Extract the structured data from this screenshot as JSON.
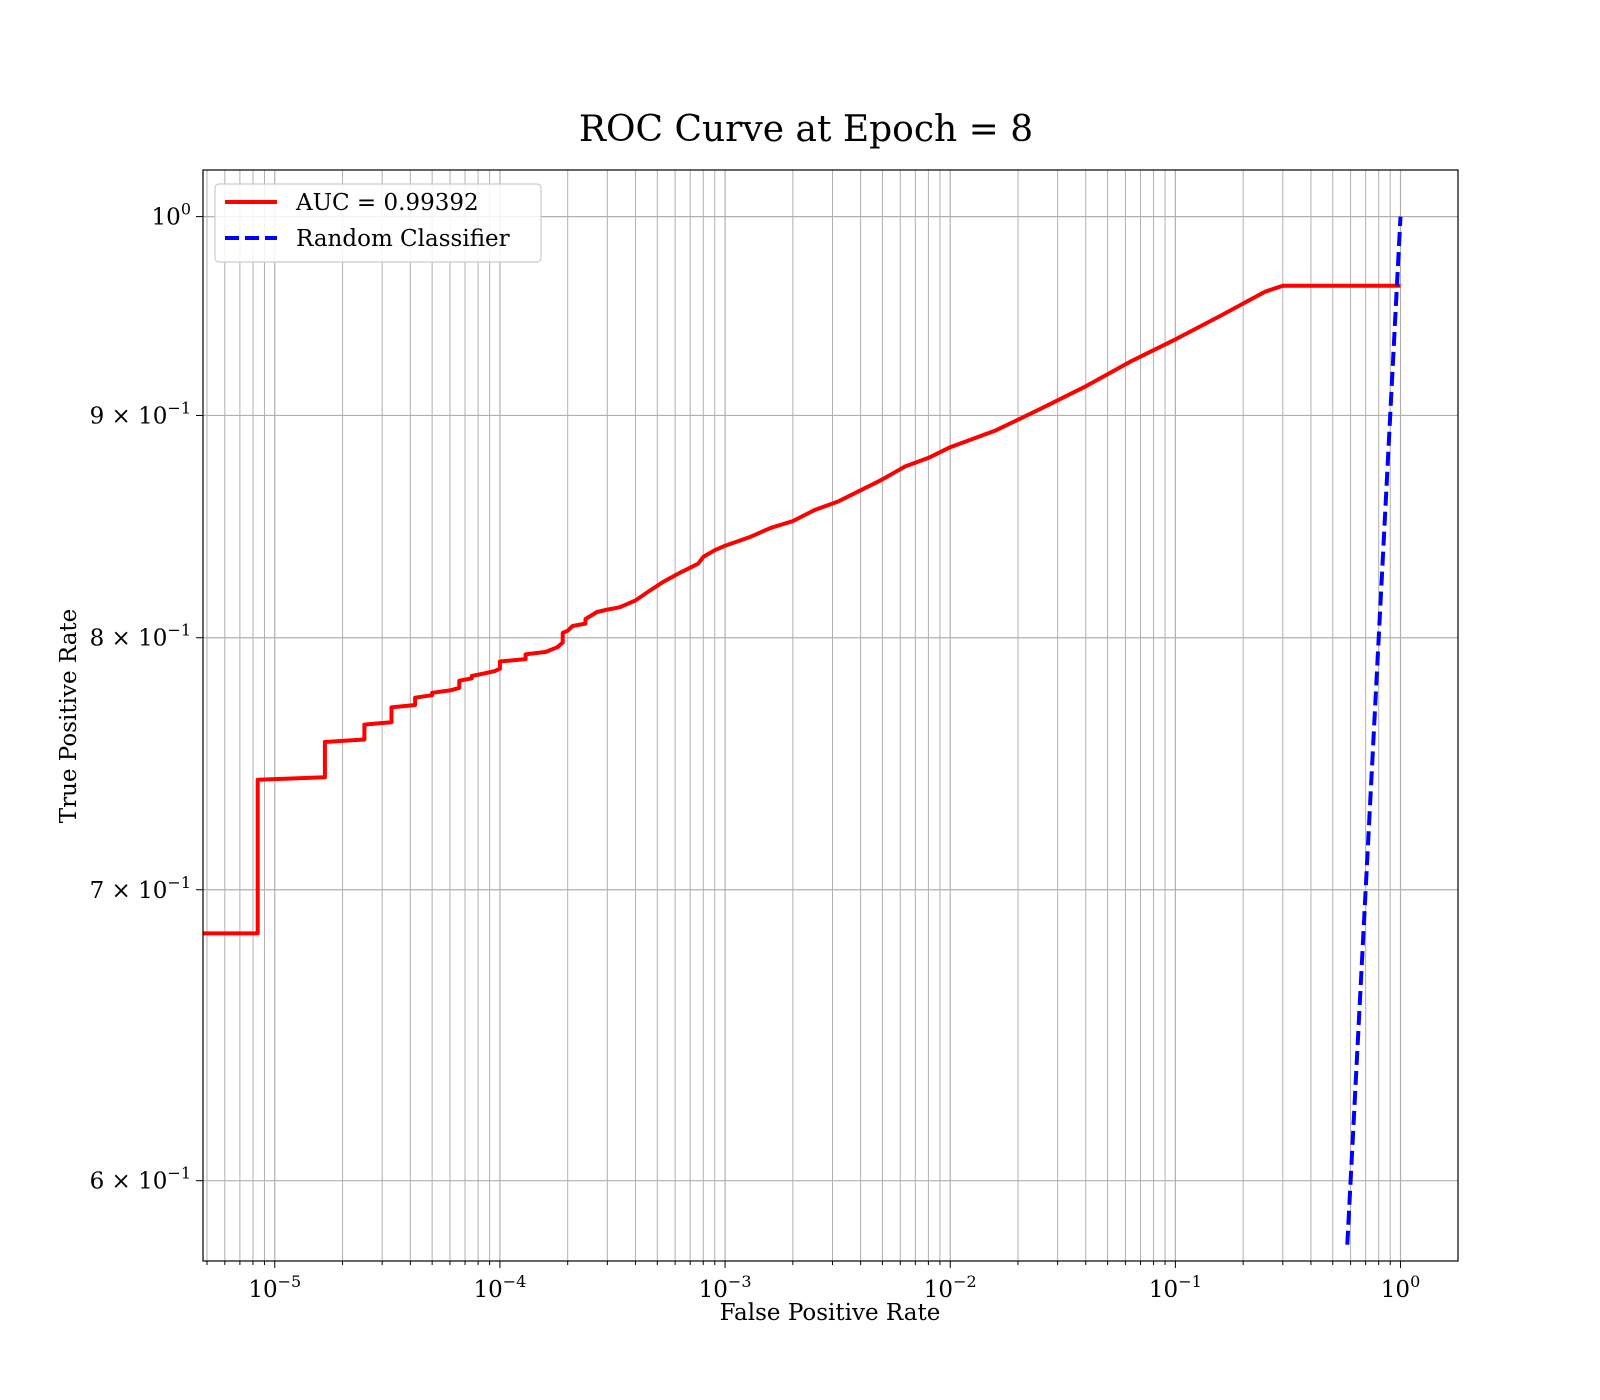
{
  "chart_data": {
    "type": "line",
    "title": "ROC Curve at Epoch = 8",
    "xlabel": "False Positive Rate",
    "ylabel": "True Positive Rate",
    "x_scale": "log",
    "y_scale": "log",
    "xlim": [
      4.8e-06,
      1.8
    ],
    "ylim": [
      0.575,
      1.025
    ],
    "grid": "both (major and minor)",
    "legend_position": "top-left",
    "x_ticks": [
      {
        "value": 1e-05,
        "base": "10",
        "exp": "−5"
      },
      {
        "value": 0.0001,
        "base": "10",
        "exp": "−4"
      },
      {
        "value": 0.001,
        "base": "10",
        "exp": "−3"
      },
      {
        "value": 0.01,
        "base": "10",
        "exp": "−2"
      },
      {
        "value": 0.1,
        "base": "10",
        "exp": "−1"
      },
      {
        "value": 1,
        "base": "10",
        "exp": "0"
      }
    ],
    "y_ticks": [
      {
        "value": 0.6,
        "base": "6 × 10",
        "exp": "−1"
      },
      {
        "value": 0.7,
        "base": "7 × 10",
        "exp": "−1"
      },
      {
        "value": 0.8,
        "base": "8 × 10",
        "exp": "−1"
      },
      {
        "value": 0.9,
        "base": "9 × 10",
        "exp": "−1"
      },
      {
        "value": 1.0,
        "base": "10",
        "exp": "0"
      }
    ],
    "series": [
      {
        "name": "AUC = 0.99392",
        "color": "#ff0000",
        "style": "solid",
        "points": [
          [
            4.8e-06,
            0.684
          ],
          [
            8.4e-06,
            0.684
          ],
          [
            8.4e-06,
            0.742
          ],
          [
            1.67e-05,
            0.743
          ],
          [
            1.67e-05,
            0.757
          ],
          [
            2.5e-05,
            0.758
          ],
          [
            2.5e-05,
            0.764
          ],
          [
            3.3e-05,
            0.765
          ],
          [
            3.3e-05,
            0.771
          ],
          [
            4.2e-05,
            0.772
          ],
          [
            4.2e-05,
            0.775
          ],
          [
            5e-05,
            0.776
          ],
          [
            5e-05,
            0.777
          ],
          [
            6e-05,
            0.778
          ],
          [
            6.6e-05,
            0.779
          ],
          [
            6.6e-05,
            0.782
          ],
          [
            7.5e-05,
            0.783
          ],
          [
            7.5e-05,
            0.784
          ],
          [
            8.5e-05,
            0.785
          ],
          [
            9.5e-05,
            0.786
          ],
          [
            0.0001,
            0.787
          ],
          [
            0.0001,
            0.79
          ],
          [
            0.00013,
            0.791
          ],
          [
            0.00013,
            0.793
          ],
          [
            0.00016,
            0.794
          ],
          [
            0.00018,
            0.796
          ],
          [
            0.00019,
            0.798
          ],
          [
            0.00019,
            0.802
          ],
          [
            0.0002,
            0.803
          ],
          [
            0.00021,
            0.805
          ],
          [
            0.00024,
            0.806
          ],
          [
            0.00024,
            0.808
          ],
          [
            0.00027,
            0.811
          ],
          [
            0.0003,
            0.812
          ],
          [
            0.00034,
            0.813
          ],
          [
            0.0004,
            0.816
          ],
          [
            0.00046,
            0.82
          ],
          [
            0.00053,
            0.824
          ],
          [
            0.00063,
            0.828
          ],
          [
            0.00076,
            0.832
          ],
          [
            0.0008,
            0.835
          ],
          [
            0.0009,
            0.838
          ],
          [
            0.001,
            0.84
          ],
          [
            0.0013,
            0.844
          ],
          [
            0.0016,
            0.848
          ],
          [
            0.002,
            0.851
          ],
          [
            0.0025,
            0.856
          ],
          [
            0.0032,
            0.86
          ],
          [
            0.004,
            0.865
          ],
          [
            0.005,
            0.87
          ],
          [
            0.0063,
            0.876
          ],
          [
            0.008,
            0.88
          ],
          [
            0.01,
            0.885
          ],
          [
            0.016,
            0.893
          ],
          [
            0.025,
            0.903
          ],
          [
            0.04,
            0.914
          ],
          [
            0.063,
            0.926
          ],
          [
            0.1,
            0.937
          ],
          [
            0.16,
            0.949
          ],
          [
            0.25,
            0.961
          ],
          [
            0.3,
            0.964
          ],
          [
            1.0,
            0.964
          ]
        ]
      },
      {
        "name": "Random Classifier",
        "color": "#0000ff",
        "style": "dashed",
        "points": [
          [
            0.58,
            0.58
          ],
          [
            1.0,
            1.0
          ]
        ]
      }
    ]
  }
}
